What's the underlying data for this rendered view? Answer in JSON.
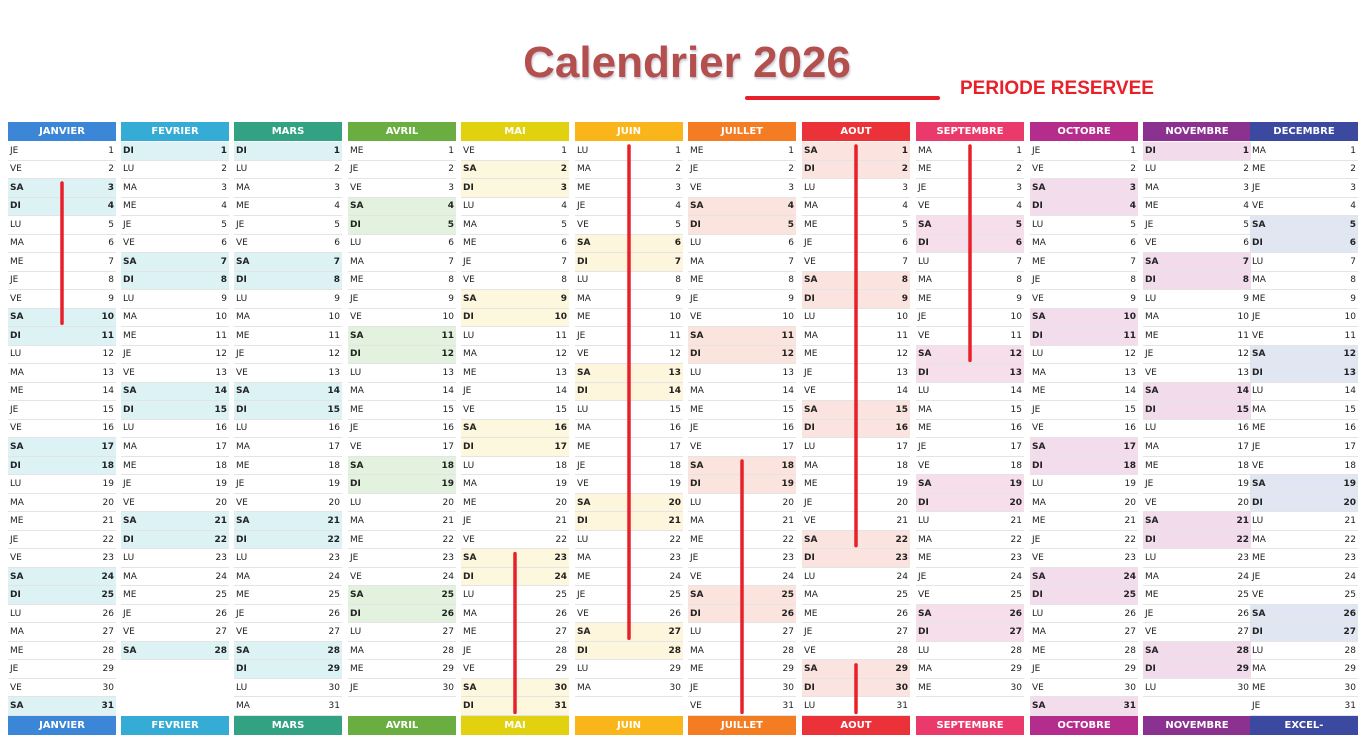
{
  "title": "Calendrier 2026",
  "legend": {
    "label": "PERIODE RESERVEE",
    "color": "#e8202a"
  },
  "weekday_labels": [
    "LU",
    "MA",
    "ME",
    "JE",
    "VE",
    "SA",
    "DI"
  ],
  "footer_last_label": "EXCEL-PRATIQUE.COM",
  "months": [
    {
      "name": "JANVIER",
      "days": 31,
      "first_weekday": 3,
      "color": "#3b86d6",
      "weekend_bg": "#dcf2f5"
    },
    {
      "name": "FEVRIER",
      "days": 28,
      "first_weekday": 6,
      "color": "#35acd6",
      "weekend_bg": "#dcf2f5"
    },
    {
      "name": "MARS",
      "days": 31,
      "first_weekday": 6,
      "color": "#33a283",
      "weekend_bg": "#dcf2f5"
    },
    {
      "name": "AVRIL",
      "days": 30,
      "first_weekday": 2,
      "color": "#6aae42",
      "weekend_bg": "#e3f1df"
    },
    {
      "name": "MAI",
      "days": 31,
      "first_weekday": 4,
      "color": "#e2d10e",
      "weekend_bg": "#fcf7dd"
    },
    {
      "name": "JUIN",
      "days": 30,
      "first_weekday": 0,
      "color": "#f9b51a",
      "weekend_bg": "#fdf6dc"
    },
    {
      "name": "JUILLET",
      "days": 31,
      "first_weekday": 2,
      "color": "#f47c22",
      "weekend_bg": "#fbe4dd"
    },
    {
      "name": "AOUT",
      "days": 31,
      "first_weekday": 5,
      "color": "#ea3238",
      "weekend_bg": "#fbe3df"
    },
    {
      "name": "SEPTEMBRE",
      "days": 30,
      "first_weekday": 1,
      "color": "#ea3a6b",
      "weekend_bg": "#f6dfea"
    },
    {
      "name": "OCTOBRE",
      "days": 31,
      "first_weekday": 3,
      "color": "#b52d8c",
      "weekend_bg": "#f3dcec"
    },
    {
      "name": "NOVEMBRE",
      "days": 30,
      "first_weekday": 6,
      "color": "#8b3190",
      "weekend_bg": "#f2dcec"
    },
    {
      "name": "DECEMBRE",
      "days": 31,
      "first_weekday": 1,
      "color": "#3b4aa0",
      "weekend_bg": "#e0e6f2"
    }
  ],
  "reserved_periods": [
    {
      "month": "JANVIER",
      "from": 3,
      "to": 10
    },
    {
      "month": "MAI",
      "from": 23,
      "to": 31
    },
    {
      "month": "JUIN",
      "from": 1,
      "to": 27
    },
    {
      "month": "JUILLET",
      "from": 18,
      "to": 31
    },
    {
      "month": "AOUT",
      "from": 1,
      "to": 22
    },
    {
      "month": "AOUT",
      "from": 29,
      "to": 31
    },
    {
      "month": "SEPTEMBRE",
      "from": 1,
      "to": 12
    }
  ]
}
